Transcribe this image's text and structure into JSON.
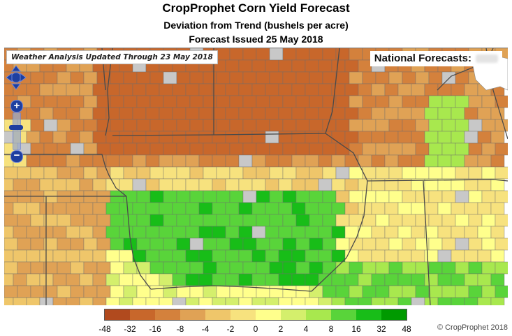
{
  "header": {
    "title": "CropProphet Corn Yield Forecast",
    "subtitle": "Deviation from Trend (bushels per acre)",
    "issued": "Forecast Issued 25 May 2018"
  },
  "map": {
    "weather_note": "Weather Analysis Updated Through 23 May 2018",
    "national_label": "National Forecasts:",
    "zoom_in_label": "+",
    "zoom_out_label": "−",
    "no_data_color": "#c8c8c8",
    "border_color": "#4a4a4a"
  },
  "legend": {
    "tick_labels": [
      "-48",
      "-32",
      "-16",
      "-8",
      "-4",
      "-2",
      "0",
      "2",
      "4",
      "8",
      "16",
      "32",
      "48"
    ],
    "colors": [
      "#b14a1e",
      "#c8672b",
      "#d4813c",
      "#e0a255",
      "#efc66a",
      "#f7e27e",
      "#ffff8c",
      "#d4ef6c",
      "#a8e84e",
      "#59d43a",
      "#18bd18",
      "#009a00"
    ]
  },
  "copyright": "© CropProphet 2018"
}
